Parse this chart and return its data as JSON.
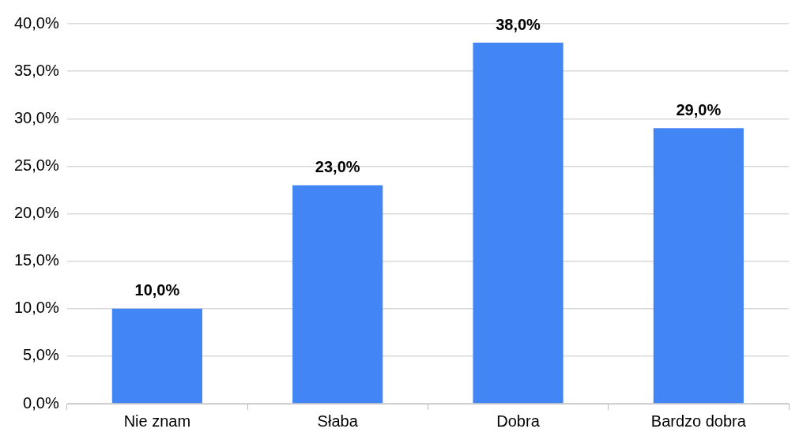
{
  "chart_data": {
    "type": "bar",
    "categories": [
      "Nie znam",
      "Słaba",
      "Dobra",
      "Bardzo dobra"
    ],
    "values": [
      10,
      23,
      38,
      29
    ],
    "color": "#4285f4",
    "value_labels": [
      "10,0%",
      "23,0%",
      "38,0%",
      "29,0%"
    ],
    "ylim": [
      0,
      40
    ],
    "yticks": [
      {
        "value": 0,
        "label": "0,0%"
      },
      {
        "value": 5,
        "label": "5,0%"
      },
      {
        "value": 10,
        "label": "10,0%"
      },
      {
        "value": 15,
        "label": "15,0%"
      },
      {
        "value": 20,
        "label": "20,0%"
      },
      {
        "value": 25,
        "label": "25,0%"
      },
      {
        "value": 30,
        "label": "30,0%"
      },
      {
        "value": 35,
        "label": "35,0%"
      },
      {
        "value": 40,
        "label": "40,0%"
      }
    ],
    "grid": "y",
    "legend": false
  }
}
